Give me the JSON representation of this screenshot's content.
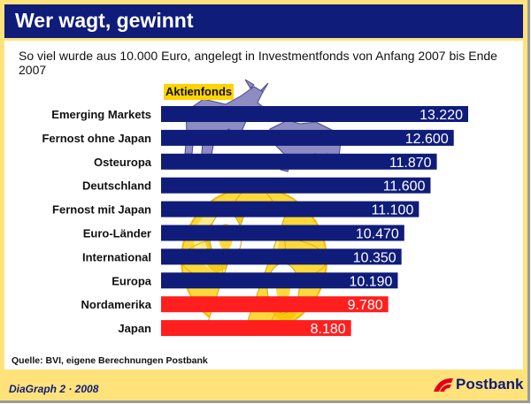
{
  "header": {
    "title": "Wer wagt, gewinnt"
  },
  "subtitle": "So viel wurde aus 10.000 Euro, angelegt in Investmentfonds von Anfang 2007 bis Ende 2007",
  "category_heading": "Aktienfonds",
  "source": "Quelle: BVI, eigene Berechnungen Postbank",
  "footer": {
    "left": "DiaGraph 2 · 2008",
    "brand": "Postbank"
  },
  "colors": {
    "header_bg": "#0f1c7a",
    "frame_bg": "#ffe27a",
    "bar_blue": "#0f1c7a",
    "bar_red": "#ff1f1f",
    "heading_bg": "#ffd400",
    "globe": "#ffd93a",
    "animals": "#8e8cc2",
    "logo_red": "#e2001a"
  },
  "chart_data": {
    "type": "bar",
    "orientation": "horizontal",
    "categories": [
      "Emerging Markets",
      "Fernost ohne Japan",
      "Osteuropa",
      "Deutschland",
      "Fernost mit Japan",
      "Euro-Länder",
      "International",
      "Europa",
      "Nordamerika",
      "Japan"
    ],
    "values": [
      13220,
      12600,
      11870,
      11600,
      11100,
      10470,
      10350,
      10190,
      9780,
      8180
    ],
    "value_labels": [
      "13.220",
      "12.600",
      "11.870",
      "11.600",
      "11.100",
      "10.470",
      "10.350",
      "10.190",
      "9.780",
      "8.180"
    ],
    "highlight": [
      false,
      false,
      false,
      false,
      false,
      false,
      false,
      false,
      true,
      true
    ],
    "xlim": [
      0,
      13220
    ],
    "grid": false,
    "legend": "none"
  }
}
